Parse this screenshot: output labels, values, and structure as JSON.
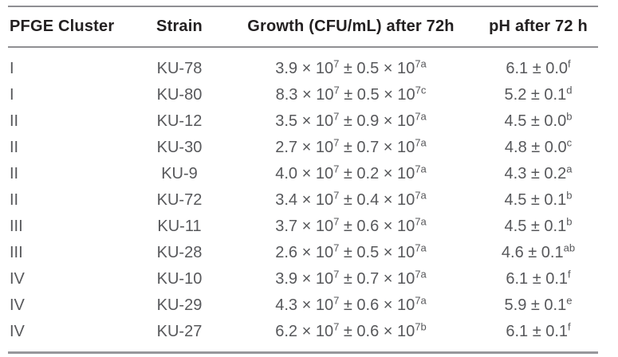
{
  "colors": {
    "header_text": "#232021",
    "body_text": "#57585b",
    "rule": "#8f8f93",
    "background": "#ffffff"
  },
  "table": {
    "headers": {
      "cluster": "PFGE Cluster",
      "strain": "Strain",
      "growth": "Growth (CFU/mL) after 72h",
      "ph": "pH after 72 h"
    },
    "rows": [
      {
        "cluster": "I",
        "strain": "KU-78",
        "growth": {
          "base1": "3.9 × 10",
          "sup1": "7",
          "base2": " ± 0.5 × 10",
          "sup2": "7a"
        },
        "ph": {
          "base": "6.1 ± 0.0",
          "sup": "f"
        }
      },
      {
        "cluster": "I",
        "strain": "KU-80",
        "growth": {
          "base1": "8.3 × 10",
          "sup1": "7",
          "base2": " ± 0.5 × 10",
          "sup2": "7c"
        },
        "ph": {
          "base": "5.2 ± 0.1",
          "sup": "d"
        }
      },
      {
        "cluster": "II",
        "strain": "KU-12",
        "growth": {
          "base1": "3.5 × 10",
          "sup1": "7",
          "base2": " ± 0.9 × 10",
          "sup2": "7a"
        },
        "ph": {
          "base": "4.5 ± 0.0",
          "sup": "b"
        }
      },
      {
        "cluster": "II",
        "strain": "KU-30",
        "growth": {
          "base1": "2.7 × 10",
          "sup1": "7",
          "base2": " ± 0.7 × 10",
          "sup2": "7a"
        },
        "ph": {
          "base": "4.8 ± 0.0",
          "sup": "c"
        }
      },
      {
        "cluster": "II",
        "strain": "KU-9",
        "growth": {
          "base1": "4.0 × 10",
          "sup1": "7",
          "base2": " ± 0.2 × 10",
          "sup2": "7a"
        },
        "ph": {
          "base": "4.3 ± 0.2",
          "sup": "a"
        }
      },
      {
        "cluster": "II",
        "strain": "KU-72",
        "growth": {
          "base1": "3.4 × 10",
          "sup1": "7",
          "base2": " ± 0.4 × 10",
          "sup2": "7a"
        },
        "ph": {
          "base": "4.5 ± 0.1",
          "sup": "b"
        }
      },
      {
        "cluster": "III",
        "strain": "KU-11",
        "growth": {
          "base1": "3.7 × 10",
          "sup1": "7",
          "base2": " ± 0.6 × 10",
          "sup2": "7a"
        },
        "ph": {
          "base": "4.5 ± 0.1",
          "sup": "b"
        }
      },
      {
        "cluster": "III",
        "strain": "KU-28",
        "growth": {
          "base1": "2.6 × 10",
          "sup1": "7",
          "base2": " ± 0.5 × 10",
          "sup2": "7a"
        },
        "ph": {
          "base": "4.6 ± 0.1",
          "sup": "ab"
        }
      },
      {
        "cluster": "IV",
        "strain": "KU-10",
        "growth": {
          "base1": "3.9 × 10",
          "sup1": "7",
          "base2": " ± 0.7 × 10",
          "sup2": "7a"
        },
        "ph": {
          "base": "6.1 ± 0.1",
          "sup": "f"
        }
      },
      {
        "cluster": "IV",
        "strain": "KU-29",
        "growth": {
          "base1": "4.3 × 10",
          "sup1": "7",
          "base2": " ± 0.6 × 10",
          "sup2": "7a"
        },
        "ph": {
          "base": "5.9 ± 0.1",
          "sup": "e"
        }
      },
      {
        "cluster": "IV",
        "strain": "KU-27",
        "growth": {
          "base1": "6.2 × 10",
          "sup1": "7",
          "base2": " ± 0.6 × 10",
          "sup2": "7b"
        },
        "ph": {
          "base": "6.1 ± 0.1",
          "sup": "f"
        }
      }
    ]
  }
}
